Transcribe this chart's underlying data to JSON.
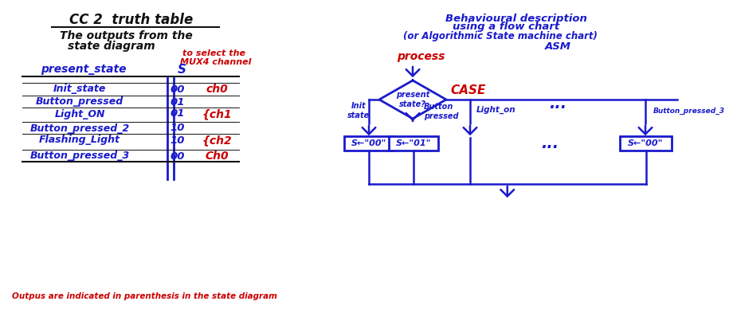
{
  "bg_color": "#ffffff",
  "blue": "#1a1acc",
  "red": "#cc0000",
  "black": "#111111",
  "title": "CC 2  truth table",
  "subtitle1": "The outputs from the",
  "subtitle2": "state diagram",
  "red_ann1": "to select the",
  "red_ann2": "MUX4 channel",
  "col1": "present_state",
  "col2": "S",
  "rows": [
    [
      "Init_state",
      "00",
      "ch0",
      true
    ],
    [
      "Button_pressed",
      "01",
      "",
      false
    ],
    [
      "Light_ON",
      "01",
      "{ch1",
      true
    ],
    [
      "Button_pressed_2",
      "10",
      "",
      false
    ],
    [
      "Flashing_Light",
      "10",
      "{ch2",
      true
    ],
    [
      "Button_pressed_3",
      "00",
      "Ch0",
      true
    ]
  ],
  "footer": "Outpus are indicated in parenthesis in the state diagram",
  "rt1": "Behavioural description",
  "rt2": "using a flow chart",
  "rt3": "(or Algorithmic State machine chart)",
  "rt4": "ASM",
  "process": "process",
  "case": "CASE",
  "diamond": "present\nstate?",
  "b1": "Init\nstate",
  "b2": "Button\npressed",
  "b3": "Light_on",
  "b5": "Button_pressed_3",
  "box1": "S←\"00\"",
  "box2": "S←\"01\"",
  "box4": "S←\"00\""
}
